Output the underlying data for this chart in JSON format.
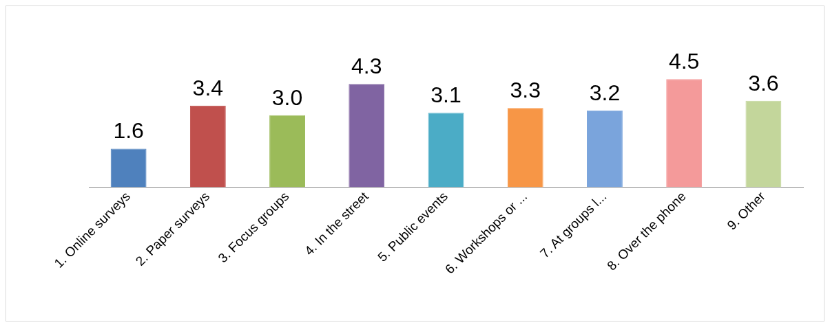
{
  "chart_data": {
    "type": "bar",
    "categories": [
      "1. Online surveys",
      "2. Paper surveys",
      "3. Focus groups",
      "4. In the street",
      "5. Public events",
      "6. Workshops or ...",
      "7. At groups l...",
      "8. Over the phone",
      "9. Other"
    ],
    "values": [
      1.6,
      3.4,
      3.0,
      4.3,
      3.1,
      3.3,
      3.2,
      4.5,
      3.6
    ],
    "value_labels": [
      "1.6",
      "3.4",
      "3.0",
      "4.3",
      "3.1",
      "3.3",
      "3.2",
      "4.5",
      "3.6"
    ],
    "colors": [
      "#4f81bd",
      "#c0504d",
      "#9bbb59",
      "#8064a2",
      "#4bacc6",
      "#f79646",
      "#7aa4dc",
      "#f49a9a",
      "#c3d69b"
    ],
    "grid": false,
    "legend": false
  }
}
